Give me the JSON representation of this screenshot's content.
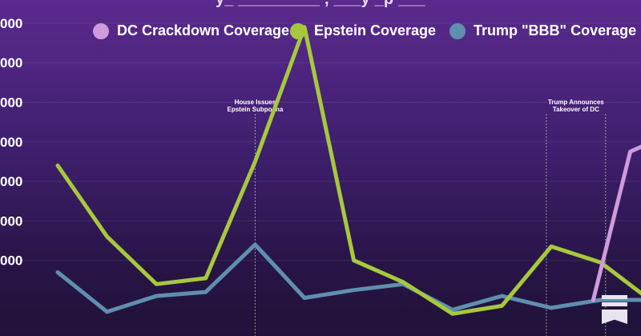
{
  "header": {
    "title_fragment": "y_ _________ , ___y _p ___"
  },
  "legend": [
    {
      "label": "DC Crackdown Coverage",
      "color": "#cf9bdc"
    },
    {
      "label": "Epstein Coverage",
      "color": "#a6c93c"
    },
    {
      "label": "Trump \"BBB\" Coverage",
      "color": "#5f8fae"
    }
  ],
  "chart_data": {
    "type": "line",
    "x": [
      1,
      2,
      3,
      4,
      5,
      6,
      7,
      8,
      9,
      10,
      11,
      12,
      13,
      14
    ],
    "y_tick_labels": [
      "000",
      "000",
      "000",
      "000",
      "000",
      "000",
      "000"
    ],
    "y_ticks": [
      7000,
      6000,
      5000,
      4000,
      3000,
      2000,
      1000
    ],
    "ylim": [
      0,
      7200
    ],
    "grid": true,
    "legend_position": "top",
    "series": [
      {
        "name": "DC Crackdown Coverage",
        "color": "#cf9bdc",
        "points": [
          [
            11.85,
            0
          ],
          [
            12.6,
            3750
          ],
          [
            13.5,
            4250
          ],
          [
            14.2,
            3250
          ]
        ]
      },
      {
        "name": "Epstein Coverage",
        "color": "#a6c93c",
        "points": [
          [
            1,
            3400
          ],
          [
            2,
            1600
          ],
          [
            3,
            400
          ],
          [
            4,
            550
          ],
          [
            5,
            3500
          ],
          [
            6,
            6900
          ],
          [
            7,
            1000
          ],
          [
            8,
            450
          ],
          [
            9,
            -350
          ],
          [
            10,
            -150
          ],
          [
            11,
            1350
          ],
          [
            12,
            950
          ],
          [
            13,
            0
          ]
        ]
      },
      {
        "name": "Trump \"BBB\" Coverage",
        "color": "#5f8fae",
        "points": [
          [
            1,
            700
          ],
          [
            2,
            -300
          ],
          [
            3,
            100
          ],
          [
            4,
            200
          ],
          [
            5,
            1400
          ],
          [
            6,
            50
          ],
          [
            7,
            250
          ],
          [
            8,
            400
          ],
          [
            9,
            -250
          ],
          [
            10,
            100
          ],
          [
            11,
            -200
          ],
          [
            12,
            0
          ],
          [
            13,
            0
          ]
        ]
      }
    ],
    "annotations": [
      {
        "lines": [
          "House Issues",
          "Epstein Subpoena"
        ],
        "x_start": 5,
        "x_end": 5
      },
      {
        "lines": [
          "Trump Announces",
          "Takeover of DC"
        ],
        "x_start": 10.9,
        "x_end": 12.1
      }
    ]
  }
}
